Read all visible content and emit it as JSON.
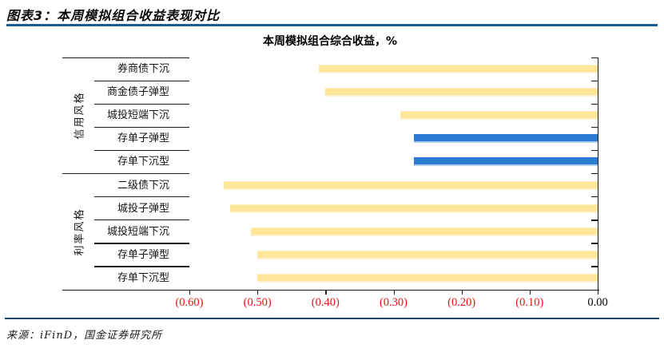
{
  "page_title": "图表3：本周模拟组合收益表现对比",
  "footer": {
    "source": "来源：iFinD，国金证券研究所"
  },
  "colors": {
    "title_rule": "#1A5C8F",
    "footer_rule": "#16486E",
    "bar_yellow": "#FFE699",
    "bar_blue": "#2A7CD2",
    "x_label_negative": "#EE1111",
    "x_label_zero": "#000000",
    "axis": "#1a1a1a"
  },
  "chart_data": {
    "type": "bar",
    "orientation": "horizontal",
    "title": "本周模拟组合综合收益，%",
    "xlim": [
      -0.6,
      0.0
    ],
    "grid": false,
    "groups": [
      {
        "label": "信用风格",
        "items": [
          {
            "label": "券商债下沉",
            "value": -0.41,
            "color": "yellow"
          },
          {
            "label": "商金债子弹型",
            "value": -0.4,
            "color": "yellow"
          },
          {
            "label": "城投短端下沉",
            "value": -0.29,
            "color": "yellow"
          },
          {
            "label": "存单子弹型",
            "value": -0.27,
            "color": "blue"
          },
          {
            "label": "存单下沉型",
            "value": -0.27,
            "color": "blue"
          }
        ]
      },
      {
        "label": "利率风格",
        "items": [
          {
            "label": "二级债下沉",
            "value": -0.55,
            "color": "yellow"
          },
          {
            "label": "城投子弹型",
            "value": -0.54,
            "color": "yellow"
          },
          {
            "label": "城投短端下沉",
            "value": -0.51,
            "color": "yellow"
          },
          {
            "label": "存单子弹型",
            "value": -0.5,
            "color": "yellow"
          },
          {
            "label": "存单下沉型",
            "value": -0.5,
            "color": "yellow"
          }
        ]
      }
    ],
    "x_axis": {
      "tick_labels": [
        "(0.60)",
        "(0.50)",
        "(0.40)",
        "(0.30)",
        "(0.20)",
        "(0.10)",
        "0.00"
      ],
      "tick_values": [
        -0.6,
        -0.5,
        -0.4,
        -0.3,
        -0.2,
        -0.1,
        0.0
      ]
    }
  }
}
